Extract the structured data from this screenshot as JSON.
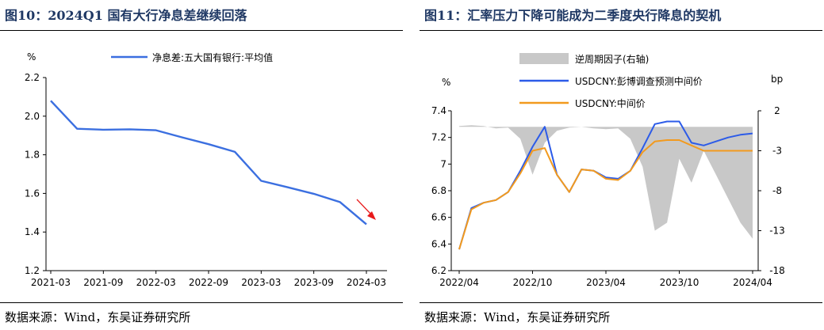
{
  "left": {
    "title": "图10：2024Q1 国有大行净息差继续回落",
    "source": "数据来源：Wind，东吴证券研究所",
    "chart_data": {
      "type": "line",
      "unit_label": "%",
      "x": [
        "2021-03",
        "2021-06",
        "2021-09",
        "2021-12",
        "2022-03",
        "2022-06",
        "2022-09",
        "2022-12",
        "2023-03",
        "2023-06",
        "2023-09",
        "2023-12",
        "2024-03"
      ],
      "x_tick_labels": [
        "2021-03",
        "2021-09",
        "2022-03",
        "2022-09",
        "2023-03",
        "2023-09",
        "2024-03"
      ],
      "ylim": [
        1.2,
        2.2
      ],
      "y_ticks": [
        "1.2",
        "1.4",
        "1.6",
        "1.8",
        "2.0",
        "2.2"
      ],
      "series": [
        {
          "name": "净息差:五大国有银行:平均值",
          "color": "#3b6fe0",
          "values": [
            2.08,
            1.935,
            1.93,
            1.932,
            1.927,
            1.89,
            1.855,
            1.815,
            1.665,
            1.632,
            1.598,
            1.555,
            1.44
          ]
        }
      ],
      "annotation": "red-down-arrow",
      "annotation_color": "#e8191a"
    }
  },
  "right": {
    "title": "图11：汇率压力下降可能成为二季度央行降息的契机",
    "source": "数据来源：Wind，东吴证券研究所",
    "chart_data": {
      "type": "line",
      "left_unit_label": "%",
      "right_unit_label": "bp",
      "x_tick_labels": [
        "2022/04",
        "2022/10",
        "2023/04",
        "2023/10",
        "2024/04"
      ],
      "ylim": [
        6.2,
        7.4
      ],
      "y_ticks": [
        "6.2",
        "6.4",
        "6.6",
        "6.8",
        "7",
        "7.2",
        "7.4"
      ],
      "y2lim": [
        -18,
        2
      ],
      "y2_ticks": [
        "-18",
        "-13",
        "-8",
        "-3",
        "2"
      ],
      "x_months": [
        0,
        1,
        2,
        3,
        4,
        5,
        6,
        7,
        8,
        9,
        10,
        11,
        12,
        13,
        14,
        15,
        16,
        17,
        18,
        19,
        20,
        21,
        22,
        23,
        24
      ],
      "series": [
        {
          "name": "逆周期因子(右轴)",
          "kind": "area",
          "axis": "right",
          "color": "#c8c8c8",
          "values": [
            0.1,
            0.2,
            0.1,
            -0.2,
            -0.1,
            -1.5,
            -6,
            -2,
            -0.5,
            -0.1,
            0.0,
            -0.2,
            -0.3,
            -0.2,
            -1.5,
            -5,
            -13,
            -12,
            -4,
            -7,
            -3,
            -6,
            -9,
            -12,
            -14
          ]
        },
        {
          "name": "USDCNY:彭博调查预测中间价",
          "kind": "line",
          "axis": "left",
          "color": "#2c5be8",
          "values": [
            6.36,
            6.67,
            6.71,
            6.73,
            6.79,
            6.95,
            7.13,
            7.28,
            6.92,
            6.79,
            6.96,
            6.95,
            6.9,
            6.89,
            6.95,
            7.12,
            7.3,
            7.32,
            7.32,
            7.16,
            7.14,
            7.17,
            7.2,
            7.22,
            7.23
          ]
        },
        {
          "name": "USDCNY:中间价",
          "kind": "line",
          "axis": "left",
          "color": "#f29a1e",
          "values": [
            6.36,
            6.66,
            6.71,
            6.73,
            6.79,
            6.93,
            7.1,
            7.12,
            6.92,
            6.79,
            6.96,
            6.95,
            6.89,
            6.88,
            6.95,
            7.09,
            7.17,
            7.18,
            7.18,
            7.14,
            7.1,
            7.1,
            7.1,
            7.1,
            7.1
          ]
        }
      ]
    }
  }
}
